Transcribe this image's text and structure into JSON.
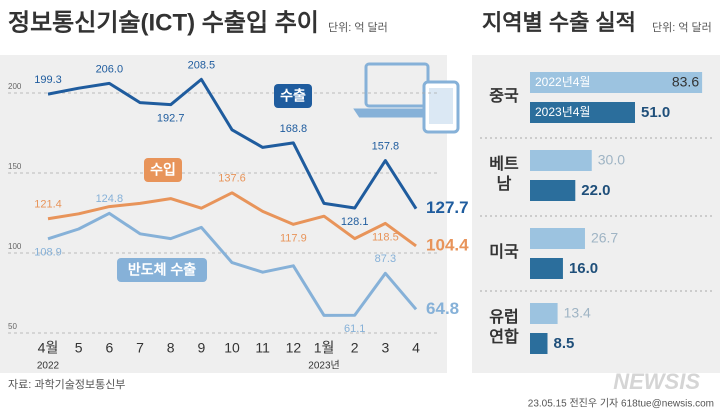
{
  "chart_data": [
    {
      "type": "line",
      "title": "정보통신기술(ICT) 수출입 추이",
      "subtitle": "단위: 억 달러",
      "categories": [
        "4월",
        "5",
        "6",
        "7",
        "8",
        "9",
        "10",
        "11",
        "12",
        "1월",
        "2",
        "3",
        "4"
      ],
      "year_labels": [
        "2022",
        "2023년"
      ],
      "ylim": [
        45,
        225
      ],
      "yticks": [
        50,
        100,
        150,
        200
      ],
      "grid": true,
      "series": [
        {
          "name": "수출",
          "color": "#1f5c9e",
          "values": [
            199.3,
            203,
            206.0,
            194,
            192.7,
            208.5,
            177,
            166,
            168.8,
            131,
            128.1,
            157.8,
            127.7
          ],
          "value_labels": [
            "199.3",
            null,
            "206.0",
            null,
            "192.7",
            "208.5",
            null,
            null,
            "168.8",
            null,
            "128.1",
            "157.8",
            "127.7"
          ]
        },
        {
          "name": "수입",
          "color": "#e8945a",
          "values": [
            121.4,
            124.5,
            129,
            131,
            134,
            128,
            137.6,
            126,
            117.9,
            123,
            109,
            118.5,
            104.4
          ],
          "value_labels": [
            "121.4",
            null,
            null,
            null,
            null,
            null,
            "137.6",
            null,
            "117.9",
            null,
            null,
            "118.5",
            "104.4"
          ]
        },
        {
          "name": "반도체 수출",
          "color": "#86b1d8",
          "values": [
            108.9,
            115,
            124.8,
            112,
            109,
            116,
            94,
            88,
            92,
            61,
            61.1,
            87.3,
            64.8
          ],
          "value_labels": [
            "108.9",
            null,
            "124.8",
            null,
            null,
            null,
            null,
            null,
            null,
            null,
            "61.1",
            "87.3",
            "64.8"
          ]
        }
      ]
    },
    {
      "type": "hbar",
      "title": "지역별 수출 실적",
      "subtitle": "단위: 억 달러",
      "categories": [
        "중국",
        "베트남",
        "미국",
        "유럽\n연합"
      ],
      "xlim": [
        0,
        85
      ],
      "series": [
        {
          "name": "2022년4월",
          "color": "#9cc3e0",
          "values": [
            83.6,
            30.0,
            26.7,
            13.4
          ],
          "value_labels": [
            "83.6",
            "30.0",
            "26.7",
            "13.4"
          ]
        },
        {
          "name": "2023년4월",
          "color": "#2b6e9c",
          "values": [
            51.0,
            22.0,
            16.0,
            8.5
          ],
          "value_labels": [
            "51.0",
            "22.0",
            "16.0",
            "8.5"
          ]
        }
      ]
    }
  ],
  "source": "자료: 과학기술정보통신부",
  "credit": "23.05.15 전진우 기자 618tue@newsis.com",
  "watermark": "NEWSIS"
}
